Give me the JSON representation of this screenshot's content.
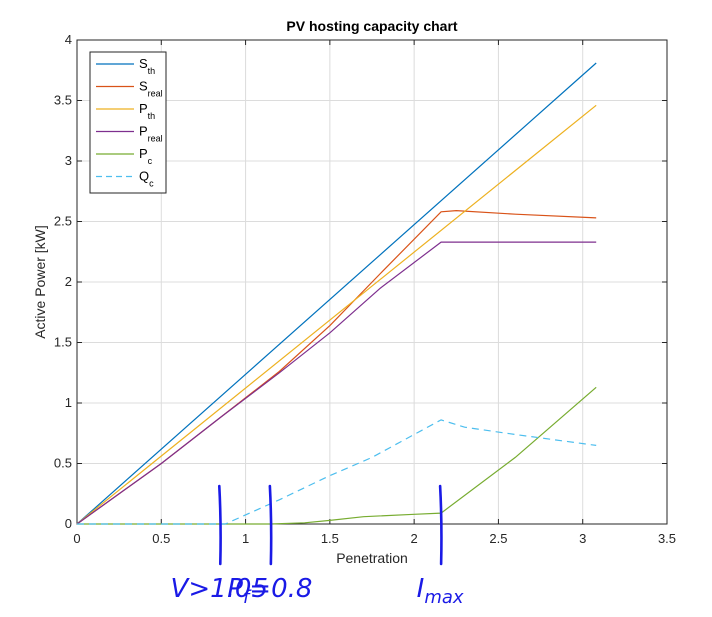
{
  "chart_data": {
    "type": "line",
    "title": "PV hosting capacity chart",
    "xlabel": "Penetration",
    "ylabel": "Active Power [kW]",
    "xlim": [
      0,
      3.5
    ],
    "ylim": [
      0,
      4
    ],
    "xticks": [
      0,
      0.5,
      1,
      1.5,
      2,
      2.5,
      3,
      3.5
    ],
    "yticks": [
      0,
      0.5,
      1,
      1.5,
      2,
      2.5,
      3,
      3.5,
      4
    ],
    "grid": true,
    "legend_position": "top-left",
    "series": [
      {
        "name": "S",
        "sub": "th",
        "color": "#0072BD",
        "dash": "solid",
        "points": [
          [
            0,
            0
          ],
          [
            3.08,
            3.81
          ]
        ]
      },
      {
        "name": "S",
        "sub": "real",
        "color": "#D95319",
        "dash": "solid",
        "points": [
          [
            0,
            0
          ],
          [
            0.5,
            0.5
          ],
          [
            0.85,
            0.88
          ],
          [
            1.2,
            1.26
          ],
          [
            1.5,
            1.64
          ],
          [
            1.8,
            2.07
          ],
          [
            2.16,
            2.58
          ],
          [
            2.25,
            2.59
          ],
          [
            2.6,
            2.56
          ],
          [
            3.08,
            2.53
          ]
        ]
      },
      {
        "name": "P",
        "sub": "th",
        "color": "#EDB120",
        "dash": "solid",
        "points": [
          [
            0,
            0
          ],
          [
            3.08,
            3.46
          ]
        ]
      },
      {
        "name": "P",
        "sub": "real",
        "color": "#7E2F8E",
        "dash": "solid",
        "points": [
          [
            0,
            0
          ],
          [
            0.5,
            0.5
          ],
          [
            0.85,
            0.88
          ],
          [
            1.2,
            1.25
          ],
          [
            1.5,
            1.58
          ],
          [
            1.8,
            1.95
          ],
          [
            2.16,
            2.33
          ],
          [
            3.08,
            2.33
          ]
        ]
      },
      {
        "name": "P",
        "sub": "c",
        "color": "#77AC30",
        "dash": "solid",
        "points": [
          [
            0,
            0
          ],
          [
            1.15,
            0
          ],
          [
            1.35,
            0.01
          ],
          [
            1.5,
            0.03
          ],
          [
            1.7,
            0.06
          ],
          [
            2.0,
            0.08
          ],
          [
            2.16,
            0.09
          ],
          [
            2.6,
            0.55
          ],
          [
            3.08,
            1.13
          ]
        ]
      },
      {
        "name": "Q",
        "sub": "c",
        "color": "#4DBEEE",
        "dash": "dashed",
        "points": [
          [
            0,
            0
          ],
          [
            0.88,
            0
          ],
          [
            1.2,
            0.2
          ],
          [
            1.5,
            0.4
          ],
          [
            1.75,
            0.55
          ],
          [
            2.0,
            0.74
          ],
          [
            2.16,
            0.86
          ],
          [
            2.3,
            0.8
          ],
          [
            2.6,
            0.74
          ],
          [
            3.08,
            0.65
          ]
        ]
      }
    ],
    "annotations": [
      {
        "text": "V>1.05",
        "x": 0.85
      },
      {
        "text": "P",
        "sub": "f",
        "rest": "=0.8",
        "x": 1.15
      },
      {
        "text": "I",
        "sub": "max",
        "x": 2.16
      }
    ]
  }
}
